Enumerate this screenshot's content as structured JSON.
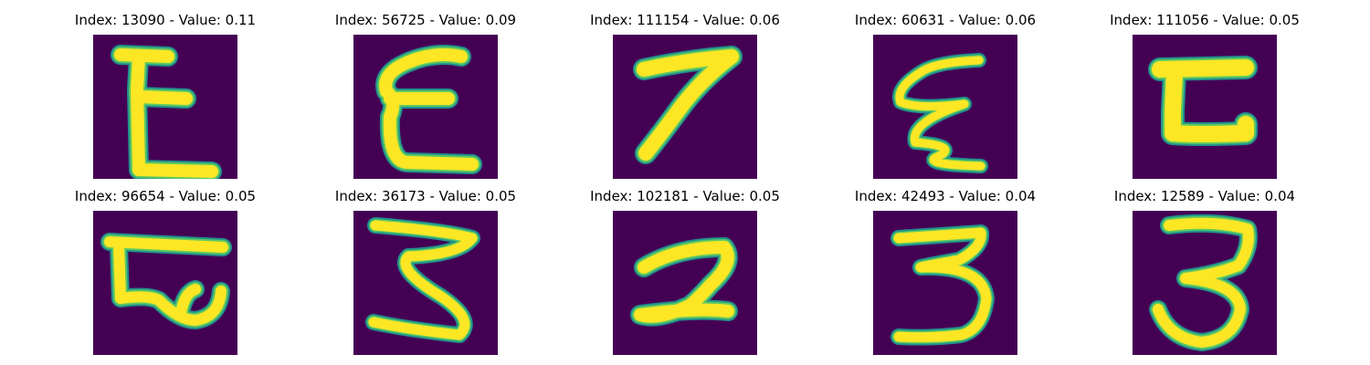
{
  "colors": {
    "background": "#440154",
    "stroke_outer": "#21918c",
    "stroke_mid": "#5ec962",
    "stroke_core": "#fde725"
  },
  "grid": [
    {
      "title": "Index: 13090 - Value: 0.11",
      "glyph": "E"
    },
    {
      "title": "Index: 56725 - Value: 0.09",
      "glyph": "E"
    },
    {
      "title": "Index: 111154 - Value: 0.06",
      "glyph": "7"
    },
    {
      "title": "Index: 60631 - Value: 0.06",
      "glyph": "E"
    },
    {
      "title": "Index: 111056 - Value: 0.05",
      "glyph": "E"
    },
    {
      "title": "Index: 96654 - Value: 0.05",
      "glyph": "E"
    },
    {
      "title": "Index: 36173 - Value: 0.05",
      "glyph": "3"
    },
    {
      "title": "Index: 102181 - Value: 0.05",
      "glyph": "2"
    },
    {
      "title": "Index: 42493 - Value: 0.04",
      "glyph": "3"
    },
    {
      "title": "Index: 12589 - Value: 0.04",
      "glyph": "3"
    }
  ]
}
